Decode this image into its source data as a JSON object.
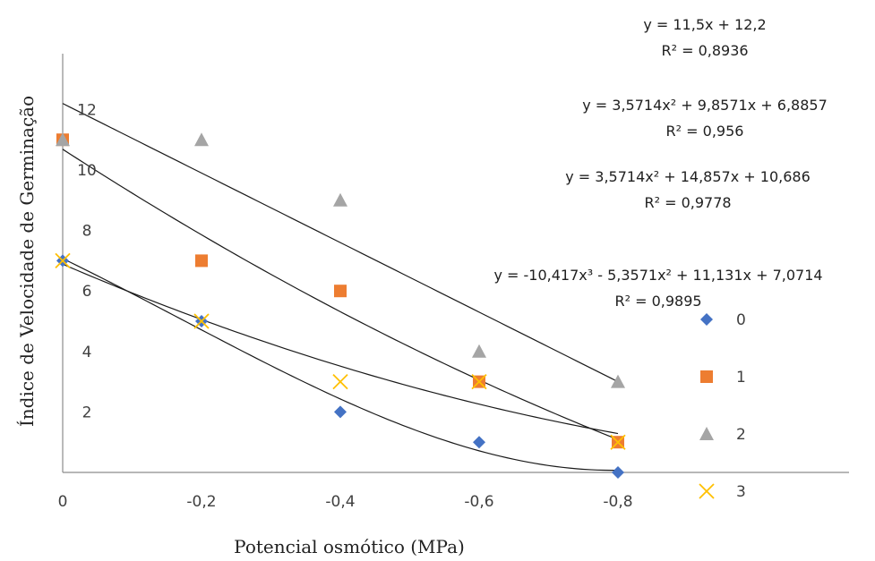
{
  "chart_data": {
    "type": "scatter",
    "xlabel": "Potencial osmótico (MPa)",
    "ylabel": "Índice de Velocidade de Germinação",
    "xlim": [
      0,
      -0.95
    ],
    "ylim": [
      0,
      14
    ],
    "x_ticks": [
      "0",
      "-0,2",
      "-0,4",
      "-0,6",
      "-0,8"
    ],
    "x_tick_values": [
      0,
      -0.2,
      -0.4,
      -0.6,
      -0.8
    ],
    "y_ticks": [
      "2",
      "4",
      "6",
      "8",
      "10",
      "12"
    ],
    "y_tick_values": [
      2,
      4,
      6,
      8,
      10,
      12
    ],
    "grid": false,
    "legend_position": "right",
    "series": [
      {
        "name": "0",
        "marker": "diamond",
        "color": "#4472C4",
        "x": [
          0,
          -0.2,
          -0.4,
          -0.6,
          -0.8
        ],
        "y": [
          7,
          5,
          2,
          1,
          0
        ]
      },
      {
        "name": "1",
        "marker": "square",
        "color": "#ED7D31",
        "x": [
          0,
          -0.2,
          -0.4,
          -0.6,
          -0.8
        ],
        "y": [
          11,
          7,
          6,
          3,
          1
        ]
      },
      {
        "name": "2",
        "marker": "triangle",
        "color": "#A5A5A5",
        "x": [
          0,
          -0.2,
          -0.4,
          -0.6,
          -0.8
        ],
        "y": [
          11,
          11,
          9,
          4,
          3
        ]
      },
      {
        "name": "3",
        "marker": "x",
        "color": "#FFC000",
        "x": [
          0,
          -0.2,
          -0.4,
          -0.6,
          -0.8
        ],
        "y": [
          7,
          5,
          3,
          3,
          1
        ]
      }
    ],
    "trendlines": [
      {
        "kind": "linear",
        "coef": [
          11.5,
          12.2
        ]
      },
      {
        "kind": "poly",
        "coef": [
          3.5714,
          9.8571,
          6.8857
        ]
      },
      {
        "kind": "poly",
        "coef": [
          3.5714,
          14.857,
          10.686
        ]
      },
      {
        "kind": "poly",
        "coef": [
          -10.417,
          -5.3571,
          11.131,
          7.0714
        ]
      }
    ],
    "equations": [
      {
        "eq": "y = 11,5x + 12,2",
        "r2": "R² = 0,8936"
      },
      {
        "eq": "y = 3,5714x² + 9,8571x + 6,8857",
        "r2": "R² = 0,956"
      },
      {
        "eq": "y = 3,5714x² + 14,857x + 10,686",
        "r2": "R² = 0,9778"
      },
      {
        "eq": "y = -10,417x³ - 5,3571x² + 11,131x + 7,0714",
        "r2": "R² = 0,9895"
      }
    ]
  }
}
